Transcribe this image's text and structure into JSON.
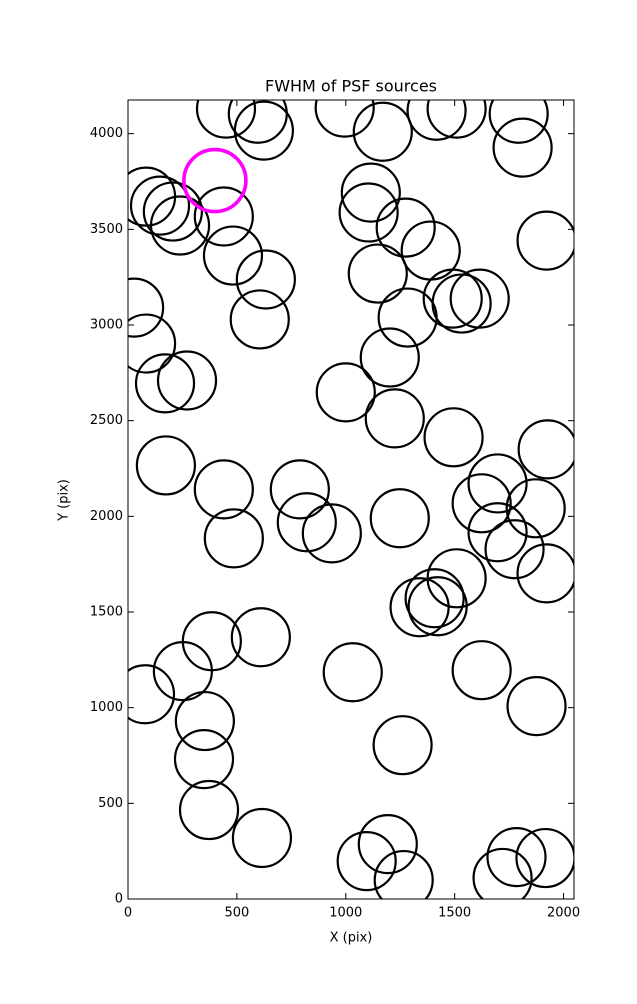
{
  "chart_data": {
    "type": "scatter",
    "title": "FWHM of PSF sources",
    "x_label": "X (pix)",
    "y_label": "Y (pix)",
    "xlim": [
      0,
      2048
    ],
    "ylim": [
      0,
      4176
    ],
    "xticks": [
      0,
      500,
      1000,
      1500,
      2000
    ],
    "yticks": [
      0,
      500,
      1000,
      1500,
      2000,
      2500,
      3000,
      3500,
      4000
    ],
    "grid": false,
    "series": [
      {
        "color": "#000000",
        "x": [
          450,
          596,
          624,
          995,
          1170,
          1417,
          1509,
          1794,
          1812,
          1922,
          83,
          147,
          206,
          239,
          440,
          482,
          633,
          605,
          28,
          83,
          170,
          271,
          174,
          440,
          486,
          789,
          821,
          936,
          1000,
          1115,
          1105,
          1275,
          1390,
          1147,
          1284,
          1202,
          1225,
          1491,
          1532,
          1615,
          1495,
          1927,
          1697,
          1624,
          1697,
          1872,
          1775,
          1922,
          1509,
          1408,
          1422,
          1339,
          1248,
          78,
          252,
          385,
          610,
          353,
          349,
          372,
          615,
          1032,
          1624,
          1876,
          1261,
          1096,
          1193,
          1266,
          1784,
          1720,
          1917
        ],
        "values": [
          4131,
          4104,
          4016,
          4136,
          4010,
          4120,
          4131,
          4104,
          3927,
          3441,
          3671,
          3624,
          3593,
          3520,
          3567,
          3363,
          3238,
          3029,
          3091,
          2903,
          2695,
          2710,
          2266,
          2141,
          1885,
          2141,
          1969,
          1911,
          2648,
          3692,
          3588,
          3509,
          3389,
          3269,
          3039,
          2830,
          2512,
          3138,
          3112,
          3138,
          2413,
          2350,
          2172,
          2068,
          1917,
          2042,
          1828,
          1702,
          1676,
          1572,
          1530,
          1525,
          1990,
          1070,
          1191,
          1347,
          1368,
          930,
          731,
          465,
          319,
          1185,
          1196,
          1008,
          804,
          198,
          287,
          99,
          219,
          110,
          214
        ]
      },
      {
        "color": "#ff00ff",
        "x": [
          399
        ],
        "values": [
          3755
        ]
      }
    ]
  }
}
